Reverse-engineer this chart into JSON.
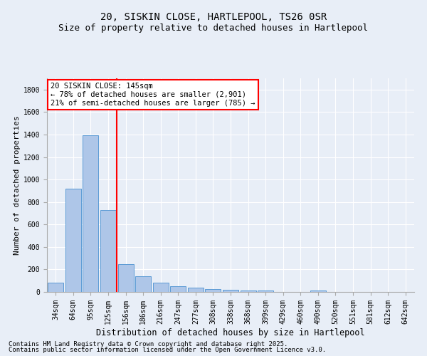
{
  "title1": "20, SISKIN CLOSE, HARTLEPOOL, TS26 0SR",
  "title2": "Size of property relative to detached houses in Hartlepool",
  "xlabel": "Distribution of detached houses by size in Hartlepool",
  "ylabel": "Number of detached properties",
  "categories": [
    "34sqm",
    "64sqm",
    "95sqm",
    "125sqm",
    "156sqm",
    "186sqm",
    "216sqm",
    "247sqm",
    "277sqm",
    "308sqm",
    "338sqm",
    "368sqm",
    "399sqm",
    "429sqm",
    "460sqm",
    "490sqm",
    "520sqm",
    "551sqm",
    "581sqm",
    "612sqm",
    "642sqm"
  ],
  "values": [
    80,
    920,
    1395,
    730,
    245,
    140,
    85,
    50,
    35,
    25,
    18,
    10,
    10,
    0,
    0,
    10,
    0,
    0,
    0,
    0,
    0
  ],
  "bar_color": "#aec6e8",
  "bar_edge_color": "#5b9bd5",
  "annotation_line1": "20 SISKIN CLOSE: 145sqm",
  "annotation_line2": "← 78% of detached houses are smaller (2,901)",
  "annotation_line3": "21% of semi-detached houses are larger (785) →",
  "vline_color": "red",
  "annotation_box_color": "#ffffff",
  "annotation_box_edge": "red",
  "ylim": [
    0,
    1900
  ],
  "yticks": [
    0,
    200,
    400,
    600,
    800,
    1000,
    1200,
    1400,
    1600,
    1800
  ],
  "background_color": "#e8eef7",
  "footer1": "Contains HM Land Registry data © Crown copyright and database right 2025.",
  "footer2": "Contains public sector information licensed under the Open Government Licence v3.0.",
  "title1_fontsize": 10,
  "title2_fontsize": 9,
  "xlabel_fontsize": 8.5,
  "ylabel_fontsize": 8,
  "tick_fontsize": 7,
  "footer_fontsize": 6.5,
  "ann_fontsize": 7.5
}
